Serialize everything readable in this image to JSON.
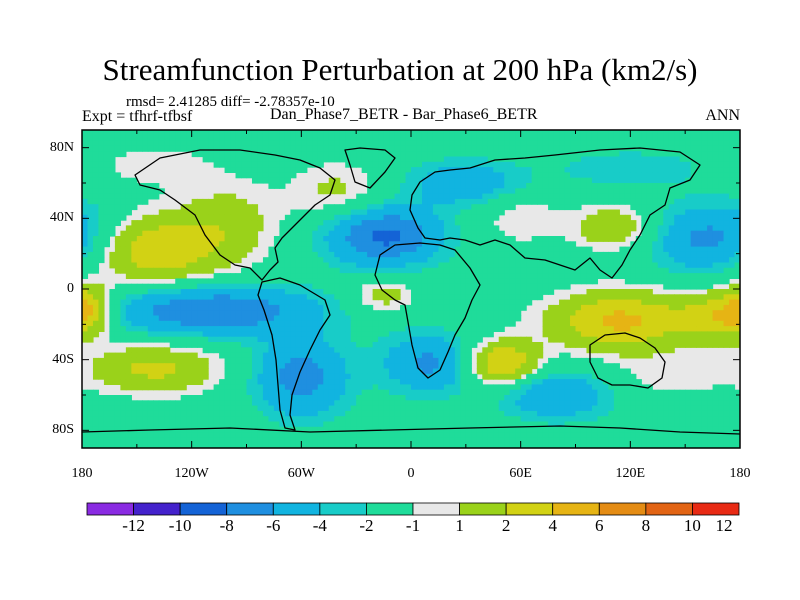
{
  "title": "Streamfunction Perturbation at 200 hPa (km2/s)",
  "stats_line": "rmsd= 2.41285 diff= -2.78357e-10",
  "experiment_label": "Expt = tfhrf-tfbsf",
  "comparison_label": "Dan_Phase7_BETR - Bar_Phase6_BETR",
  "season_label": "ANN",
  "colors": {
    "land_outline": "#000000",
    "neutral_fill": "#e8e8e8",
    "legend_fills": [
      "#8a2be2",
      "#4422cc",
      "#1463d6",
      "#1f8fe0",
      "#11b4e0",
      "#18ccc8",
      "#1fdc9a",
      "#e8e8e8",
      "#9ad21a",
      "#d2d214",
      "#e6b414",
      "#e48c14",
      "#e26414",
      "#e82a14"
    ]
  },
  "chart_data": {
    "type": "heatmap",
    "title": "Streamfunction Perturbation at 200 hPa (km2/s)",
    "projection": "cylindrical equidistant",
    "x_range": [
      -180,
      180
    ],
    "y_range": [
      -90,
      90
    ],
    "x_ticks": [
      {
        "value": -180,
        "label": "180"
      },
      {
        "value": -120,
        "label": "120W"
      },
      {
        "value": -60,
        "label": "60W"
      },
      {
        "value": 0,
        "label": "0"
      },
      {
        "value": 60,
        "label": "60E"
      },
      {
        "value": 120,
        "label": "120E"
      },
      {
        "value": 180,
        "label": "180"
      }
    ],
    "y_ticks": [
      {
        "value": 80,
        "label": "80N"
      },
      {
        "value": 40,
        "label": "40N"
      },
      {
        "value": 0,
        "label": "0"
      },
      {
        "value": -40,
        "label": "40S"
      },
      {
        "value": -80,
        "label": "80S"
      }
    ],
    "legend_levels": [
      "-12",
      "-10",
      "-8",
      "-6",
      "-4",
      "-2",
      "-1",
      "1",
      "2",
      "4",
      "6",
      "8",
      "10",
      "12"
    ],
    "field_centers": [
      {
        "lon": -140,
        "lat": 22,
        "amp": 5.5,
        "slon": 28,
        "slat": 14
      },
      {
        "lon": -100,
        "lat": 40,
        "amp": 2.5,
        "slon": 20,
        "slat": 16
      },
      {
        "lon": -175,
        "lat": 30,
        "amp": -1.8,
        "slon": 14,
        "slat": 14
      },
      {
        "lon": -40,
        "lat": 55,
        "amp": 2.5,
        "slon": 18,
        "slat": 12
      },
      {
        "lon": -15,
        "lat": 30,
        "amp": -6.5,
        "slon": 22,
        "slat": 12
      },
      {
        "lon": 30,
        "lat": 60,
        "amp": -3.5,
        "slon": 22,
        "slat": 9
      },
      {
        "lon": 60,
        "lat": 40,
        "amp": 2.0,
        "slon": 15,
        "slat": 10
      },
      {
        "lon": 110,
        "lat": 35,
        "amp": 3.5,
        "slon": 16,
        "slat": 9
      },
      {
        "lon": 160,
        "lat": 28,
        "amp": -4.5,
        "slon": 20,
        "slat": 14
      },
      {
        "lon": 120,
        "lat": 68,
        "amp": -1.8,
        "slon": 30,
        "slat": 8
      },
      {
        "lon": -140,
        "lat": 70,
        "amp": 1.8,
        "slon": 22,
        "slat": 8
      },
      {
        "lon": -110,
        "lat": -12,
        "amp": -6.0,
        "slon": 40,
        "slat": 10
      },
      {
        "lon": -177,
        "lat": -10,
        "amp": 4.5,
        "slon": 9,
        "slat": 10
      },
      {
        "lon": -140,
        "lat": -45,
        "amp": 4.5,
        "slon": 25,
        "slat": 10
      },
      {
        "lon": -60,
        "lat": -50,
        "amp": -5.0,
        "slon": 18,
        "slat": 16
      },
      {
        "lon": -15,
        "lat": -3,
        "amp": 3.0,
        "slon": 12,
        "slat": 7
      },
      {
        "lon": 10,
        "lat": -42,
        "amp": -4.5,
        "slon": 18,
        "slat": 12
      },
      {
        "lon": 50,
        "lat": -42,
        "amp": 6.5,
        "slon": 14,
        "slat": 9
      },
      {
        "lon": 115,
        "lat": -18,
        "amp": 6.5,
        "slon": 28,
        "slat": 12
      },
      {
        "lon": 170,
        "lat": -15,
        "amp": 5.0,
        "slon": 15,
        "slat": 10
      },
      {
        "lon": 80,
        "lat": -60,
        "amp": -4.0,
        "slon": 22,
        "slat": 10
      },
      {
        "lon": 140,
        "lat": -50,
        "amp": 1.5,
        "slon": 25,
        "slat": 9
      }
    ]
  }
}
